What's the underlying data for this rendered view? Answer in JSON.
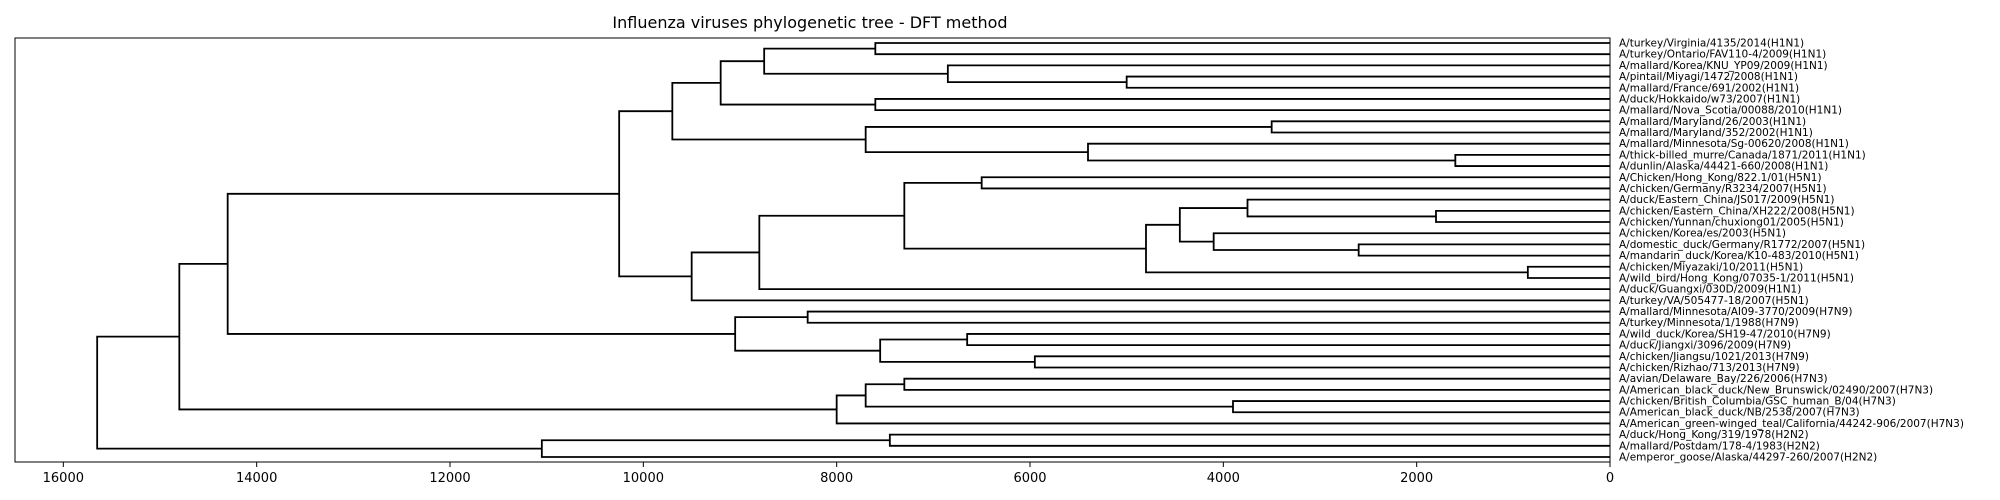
{
  "chart_data": {
    "type": "dendrogram",
    "title": "Influenza viruses phylogenetic tree - DFT method",
    "xlim": [
      16500,
      0
    ],
    "x_ticks": [
      16000,
      14000,
      12000,
      10000,
      8000,
      6000,
      4000,
      2000,
      0
    ],
    "x_tick_labels": [
      "16000",
      "14000",
      "12000",
      "10000",
      "8000",
      "6000",
      "4000",
      "2000",
      "0"
    ],
    "leaves": [
      "A/turkey/Virginia/4135/2014(H1N1)",
      "A/turkey/Ontario/FAV110-4/2009(H1N1)",
      "A/mallard/Korea/KNU_YP09/2009(H1N1)",
      "A/pintail/Miyagi/1472/2008(H1N1)",
      "A/mallard/France/691/2002(H1N1)",
      "A/duck/Hokkaido/w73/2007(H1N1)",
      "A/mallard/Nova_Scotia/00088/2010(H1N1)",
      "A/mallard/Maryland/26/2003(H1N1)",
      "A/mallard/Maryland/352/2002(H1N1)",
      "A/mallard/Minnesota/Sg-00620/2008(H1N1)",
      "A/thick-billed_murre/Canada/1871/2011(H1N1)",
      "A/dunlin/Alaska/44421-660/2008(H1N1)",
      "A/Chicken/Hong_Kong/822.1/01(H5N1)",
      "A/chicken/Germany/R3234/2007(H5N1)",
      "A/duck/Eastern_China/JS017/2009(H5N1)",
      "A/chicken/Eastern_China/XH222/2008(H5N1)",
      "A/chicken/Yunnan/chuxiong01/2005(H5N1)",
      "A/chicken/Korea/es/2003(H5N1)",
      "A/domestic_duck/Germany/R1772/2007(H5N1)",
      "A/mandarin_duck/Korea/K10-483/2010(H5N1)",
      "A/chicken/Miyazaki/10/2011(H5N1)",
      "A/wild_bird/Hong_Kong/07035-1/2011(H5N1)",
      "A/duck/Guangxi/030D/2009(H1N1)",
      "A/turkey/VA/505477-18/2007(H5N1)",
      "A/mallard/Minnesota/AI09-3770/2009(H7N9)",
      "A/turkey/Minnesota/1/1988(H7N9)",
      "A/wild_duck/Korea/SH19-47/2010(H7N9)",
      "A/duck/Jiangxi/3096/2009(H7N9)",
      "A/chicken/Jiangsu/1021/2013(H7N9)",
      "A/chicken/Rizhao/713/2013(H7N9)",
      "A/avian/Delaware_Bay/226/2006(H7N3)",
      "A/American_black_duck/New_Brunswick/02490/2007(H7N3)",
      "A/chicken/British_Columbia/GSC_human_B/04(H7N3)",
      "A/American_black_duck/NB/2538/2007(H7N3)",
      "A/American_green-winged_teal/California/44242-906/2007(H7N3)",
      "A/duck/Hong_Kong/319/1978(H2N2)",
      "A/mallard/Postdam/178-4/1983(H2N2)",
      "A/emperor_goose/Alaska/44297-260/2007(H2N2)"
    ],
    "merges": [
      {
        "id": "m1",
        "children": [
          "0",
          "1"
        ],
        "height": 7600
      },
      {
        "id": "m2",
        "children": [
          "3",
          "4"
        ],
        "height": 5000
      },
      {
        "id": "m3",
        "children": [
          "2",
          "m2"
        ],
        "height": 6850
      },
      {
        "id": "m4",
        "children": [
          "m1",
          "m3"
        ],
        "height": 8750
      },
      {
        "id": "m5",
        "children": [
          "5",
          "6"
        ],
        "height": 7600
      },
      {
        "id": "m6",
        "children": [
          "m4",
          "m5"
        ],
        "height": 9200
      },
      {
        "id": "m7",
        "children": [
          "7",
          "8"
        ],
        "height": 3500
      },
      {
        "id": "m8",
        "children": [
          "10",
          "11"
        ],
        "height": 1600
      },
      {
        "id": "m9",
        "children": [
          "9",
          "m8"
        ],
        "height": 5400
      },
      {
        "id": "m10",
        "children": [
          "m7",
          "m9"
        ],
        "height": 7700
      },
      {
        "id": "m11",
        "children": [
          "m6",
          "m10"
        ],
        "height": 9700
      },
      {
        "id": "m12",
        "children": [
          "12",
          "13"
        ],
        "height": 6500
      },
      {
        "id": "m13",
        "children": [
          "15",
          "16"
        ],
        "height": 1800
      },
      {
        "id": "m14",
        "children": [
          "14",
          "m13"
        ],
        "height": 3750
      },
      {
        "id": "m15",
        "children": [
          "18",
          "19"
        ],
        "height": 2600
      },
      {
        "id": "m16",
        "children": [
          "17",
          "m15"
        ],
        "height": 4100
      },
      {
        "id": "m17",
        "children": [
          "m14",
          "m16"
        ],
        "height": 4450
      },
      {
        "id": "m18",
        "children": [
          "20",
          "21"
        ],
        "height": 850
      },
      {
        "id": "m19",
        "children": [
          "m17",
          "m18"
        ],
        "height": 4800
      },
      {
        "id": "m20",
        "children": [
          "m12",
          "m19"
        ],
        "height": 7300
      },
      {
        "id": "m21",
        "children": [
          "m20",
          "22"
        ],
        "height": 8800
      },
      {
        "id": "m22",
        "children": [
          "m21",
          "23"
        ],
        "height": 9500
      },
      {
        "id": "m23",
        "children": [
          "m11",
          "m22"
        ],
        "height": 10250
      },
      {
        "id": "m24",
        "children": [
          "24",
          "25"
        ],
        "height": 8300
      },
      {
        "id": "m25",
        "children": [
          "26",
          "27"
        ],
        "height": 6650
      },
      {
        "id": "m26",
        "children": [
          "28",
          "29"
        ],
        "height": 5950
      },
      {
        "id": "m27",
        "children": [
          "m25",
          "m26"
        ],
        "height": 7550
      },
      {
        "id": "m28",
        "children": [
          "m24",
          "m27"
        ],
        "height": 9050
      },
      {
        "id": "m29",
        "children": [
          "m23",
          "m28"
        ],
        "height": 14300
      },
      {
        "id": "m30",
        "children": [
          "30",
          "31"
        ],
        "height": 7300
      },
      {
        "id": "m31",
        "children": [
          "32",
          "33"
        ],
        "height": 3900
      },
      {
        "id": "m32",
        "children": [
          "m30",
          "m31"
        ],
        "height": 7700
      },
      {
        "id": "m33",
        "children": [
          "m32",
          "34"
        ],
        "height": 8000
      },
      {
        "id": "m34",
        "children": [
          "m29",
          "m33"
        ],
        "height": 14800
      },
      {
        "id": "m35",
        "children": [
          "35",
          "36"
        ],
        "height": 7450
      },
      {
        "id": "m36",
        "children": [
          "m35",
          "37"
        ],
        "height": 11050
      },
      {
        "id": "m37",
        "children": [
          "m34",
          "m36"
        ],
        "height": 15650
      }
    ]
  }
}
